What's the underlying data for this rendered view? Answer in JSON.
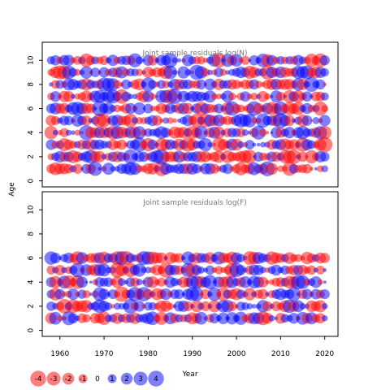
{
  "chart_data": {
    "type": "scatter",
    "ylabel": "Age",
    "xlabel": "Year",
    "colors": {
      "positive": "#0000ff",
      "negative": "#ff0000"
    },
    "x_ticks": [
      1960,
      1970,
      1980,
      1990,
      2000,
      2010,
      2020
    ],
    "y_ticks": [
      0,
      2,
      4,
      6,
      8,
      10
    ],
    "xlim": [
      1956,
      2023
    ],
    "ylim": [
      -0.5,
      11.5
    ],
    "years": [
      1958,
      2020
    ],
    "panels": [
      {
        "title": "Joint sample residuals log(N)",
        "ages": [
          1,
          2,
          3,
          4,
          5,
          6,
          7,
          8,
          9,
          10
        ],
        "seed": 11
      },
      {
        "title": "Joint sample residuals log(F)",
        "ages": [
          1,
          2,
          3,
          4,
          5,
          6
        ],
        "seed": 29
      }
    ],
    "legend": {
      "values": [
        -4,
        -3,
        -2,
        -1,
        0,
        1,
        2,
        3,
        4
      ],
      "labels": [
        "-4",
        "-3",
        "-2",
        "-1",
        "0",
        "1",
        "2",
        "3",
        "4"
      ]
    }
  }
}
